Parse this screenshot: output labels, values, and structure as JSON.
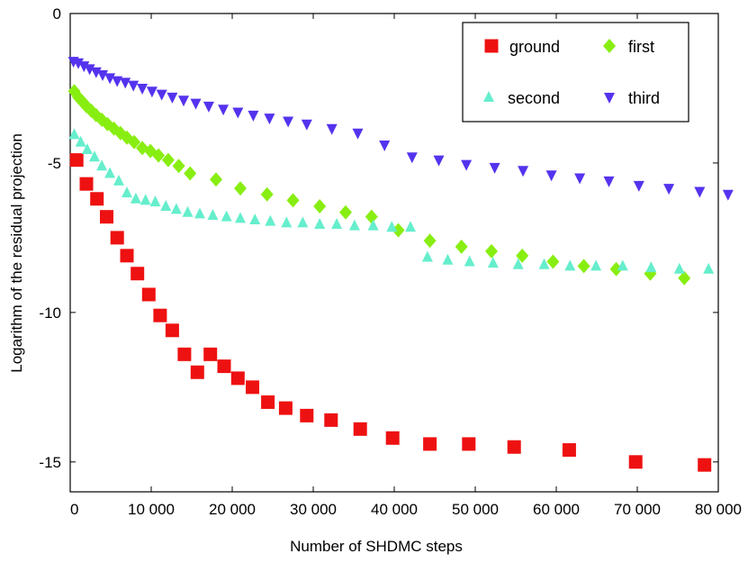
{
  "chart_data": {
    "type": "scatter",
    "title": "",
    "xlabel": "Number of SHDMC steps",
    "ylabel": "Logarithm of the residual projection",
    "xlim": [
      0,
      80000
    ],
    "ylim": [
      -16,
      0
    ],
    "x_ticks": [
      0,
      10000,
      20000,
      30000,
      40000,
      50000,
      60000,
      70000,
      80000
    ],
    "x_tick_labels": [
      "0",
      "10 000",
      "20 000",
      "30 000",
      "40 000",
      "50 000",
      "60 000",
      "70 000",
      "80 000"
    ],
    "y_ticks": [
      0,
      -5,
      -10,
      -15
    ],
    "y_tick_labels": [
      "0",
      "-5",
      "-10",
      "-15"
    ],
    "grid": false,
    "legend_position": "top-right",
    "series": [
      {
        "name": "ground",
        "marker": "square",
        "color": "#ee1111",
        "x": [
          800,
          2000,
          3300,
          4500,
          5800,
          7000,
          8300,
          9700,
          11100,
          12600,
          14100,
          15700,
          17300,
          19000,
          20700,
          22500,
          24400,
          26600,
          29200,
          32200,
          35800,
          39800,
          44400,
          49200,
          54800,
          61600,
          69800,
          78300
        ],
        "y": [
          -4.9,
          -5.7,
          -6.2,
          -6.8,
          -7.5,
          -8.1,
          -8.7,
          -9.4,
          -10.1,
          -10.6,
          -11.4,
          -12.0,
          -11.4,
          -11.8,
          -12.2,
          -12.5,
          -13.0,
          -13.2,
          -13.45,
          -13.6,
          -13.9,
          -14.2,
          -14.4,
          -14.4,
          -14.5,
          -14.6,
          -15.0,
          -15.1
        ]
      },
      {
        "name": "first",
        "marker": "diamond",
        "color": "#88ee11",
        "x": [
          500,
          1000,
          1500,
          2000,
          2600,
          3200,
          3900,
          4600,
          5400,
          6200,
          7000,
          7900,
          8900,
          9900,
          10900,
          12100,
          13400,
          14800,
          18000,
          21000,
          24300,
          27500,
          30800,
          34000,
          37200,
          40500,
          44400,
          48300,
          52000,
          55800,
          59600,
          63400,
          67400,
          71600,
          75800
        ],
        "y": [
          -2.6,
          -2.8,
          -2.95,
          -3.1,
          -3.25,
          -3.4,
          -3.55,
          -3.7,
          -3.85,
          -4.0,
          -4.15,
          -4.3,
          -4.5,
          -4.6,
          -4.75,
          -4.9,
          -5.1,
          -5.35,
          -5.55,
          -5.85,
          -6.05,
          -6.25,
          -6.45,
          -6.65,
          -6.8,
          -7.25,
          -7.6,
          -7.8,
          -7.95,
          -8.1,
          -8.3,
          -8.45,
          -8.55,
          -8.7,
          -8.85
        ]
      },
      {
        "name": "second",
        "marker": "triangle-up",
        "color": "#66eecc",
        "x": [
          500,
          1300,
          2100,
          3000,
          3900,
          4900,
          6000,
          7000,
          8100,
          9300,
          10500,
          11800,
          13100,
          14500,
          16000,
          17600,
          19300,
          21000,
          22800,
          24700,
          26700,
          28700,
          30800,
          32900,
          35100,
          37400,
          39700,
          42000,
          44100,
          46600,
          49300,
          52200,
          55300,
          58500,
          61700,
          64900,
          68200,
          71700,
          75200,
          78800
        ],
        "y": [
          -4.05,
          -4.3,
          -4.55,
          -4.8,
          -5.1,
          -5.35,
          -5.6,
          -6.0,
          -6.2,
          -6.25,
          -6.3,
          -6.45,
          -6.55,
          -6.65,
          -6.7,
          -6.75,
          -6.8,
          -6.85,
          -6.9,
          -6.95,
          -7.0,
          -7.0,
          -7.05,
          -7.05,
          -7.1,
          -7.1,
          -7.15,
          -7.15,
          -8.15,
          -8.25,
          -8.3,
          -8.35,
          -8.4,
          -8.4,
          -8.45,
          -8.45,
          -8.45,
          -8.5,
          -8.55,
          -8.55
        ]
      },
      {
        "name": "third",
        "marker": "triangle-down",
        "color": "#5533ee",
        "x": [
          400,
          1000,
          1700,
          2400,
          3200,
          4000,
          4900,
          5800,
          6800,
          7800,
          8900,
          10100,
          11300,
          12600,
          14000,
          15500,
          17100,
          18900,
          20700,
          22600,
          24600,
          26900,
          29200,
          32300,
          35500,
          38800,
          42200,
          45500,
          48900,
          52400,
          55900,
          59400,
          62900,
          66500,
          70200,
          73900,
          77700,
          81200
        ],
        "y": [
          -1.6,
          -1.65,
          -1.75,
          -1.85,
          -1.95,
          -2.05,
          -2.15,
          -2.25,
          -2.3,
          -2.4,
          -2.5,
          -2.6,
          -2.7,
          -2.8,
          -2.9,
          -3.0,
          -3.1,
          -3.2,
          -3.3,
          -3.4,
          -3.5,
          -3.6,
          -3.7,
          -3.85,
          -4.0,
          -4.4,
          -4.8,
          -4.9,
          -5.05,
          -5.15,
          -5.25,
          -5.4,
          -5.5,
          -5.6,
          -5.75,
          -5.85,
          -5.95,
          -6.05
        ]
      }
    ]
  }
}
